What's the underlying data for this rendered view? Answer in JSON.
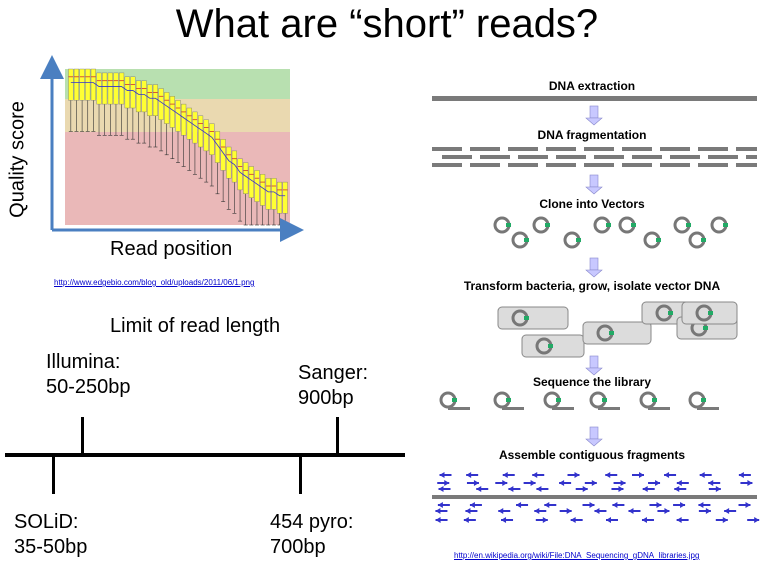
{
  "title": "What are “short” reads?",
  "quality_plot": {
    "y_label": "Quality score",
    "x_label": "Read position",
    "source_url": "http://www.edgebio.com/blog_old/uploads/2011/06/1.png",
    "box_medians": [
      38,
      38,
      38,
      38,
      38,
      37,
      37,
      37,
      37,
      37,
      36,
      36,
      35,
      35,
      34,
      34,
      33,
      32,
      31,
      30,
      29,
      28,
      27,
      26,
      25,
      24,
      22,
      20,
      18,
      17,
      15,
      14,
      13,
      12,
      11,
      10,
      10,
      9,
      9
    ],
    "colors": {
      "good": "#b8e0b0",
      "ok": "#ead9b0",
      "bad": "#eab8b8",
      "box": "#ffff33",
      "median": "#cc3333",
      "mean": "#3333cc"
    }
  },
  "timeline": {
    "title": "Limit of read length",
    "above": [
      {
        "name": "Illumina:",
        "range": "50-250bp"
      },
      {
        "name": "Sanger:",
        "range": "900bp"
      }
    ],
    "below": [
      {
        "name": "SOLiD:",
        "range": "35-50bp"
      },
      {
        "name": "454 pyro:",
        "range": "700bp"
      }
    ]
  },
  "workflow": {
    "steps": [
      "DNA extraction",
      "DNA fragmentation",
      "Clone into Vectors",
      "Transform bacteria, grow, isolate vector DNA",
      "Sequence the library",
      "Assemble contiguous fragments"
    ],
    "source_url": "http://en.wikipedia.org/wiki/File:DNA_Sequencing_gDNA_libraries.jpg",
    "colors": {
      "bar": "#7a7a7a",
      "arrow": "#c8c8ff",
      "insert": "#22aa66",
      "read": "#3333cc"
    }
  }
}
